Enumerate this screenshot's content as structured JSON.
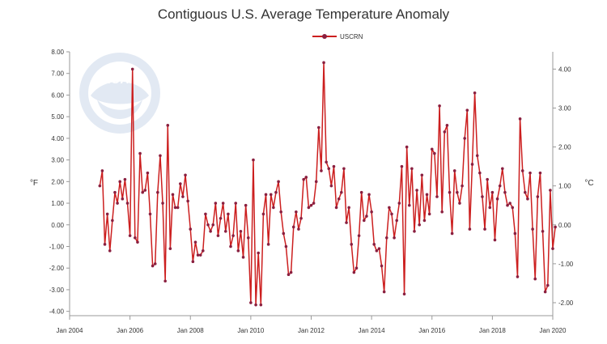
{
  "chart_data": {
    "type": "line",
    "title": "Contiguous U.S. Average Temperature Anomaly",
    "legend": "USCRN",
    "legend_position": "top-center",
    "xlabel": "",
    "ylabel": "°F",
    "y2label": "°C",
    "xlim": [
      2004.0,
      2020.0
    ],
    "ylim": [
      -4.2,
      8.0
    ],
    "y2lim": [
      -2.333,
      4.444
    ],
    "x_ticks": [
      2004,
      2006,
      2008,
      2010,
      2012,
      2014,
      2016,
      2018,
      2020
    ],
    "x_tick_labels": [
      "Jan 2004",
      "Jan 2006",
      "Jan 2008",
      "Jan 2010",
      "Jan 2012",
      "Jan 2014",
      "Jan 2016",
      "Jan 2018",
      "Jan 2020"
    ],
    "y_ticks": [
      -4,
      -3,
      -2,
      -1,
      0,
      1,
      2,
      3,
      4,
      5,
      6,
      7,
      8
    ],
    "y_tick_labels": [
      "-4.00",
      "-3.00",
      "-2.00",
      "-1.00",
      "0.00",
      "1.00",
      "2.00",
      "3.00",
      "4.00",
      "5.00",
      "6.00",
      "7.00",
      "8.00"
    ],
    "y2_ticks": [
      -2,
      -1,
      0,
      1,
      2,
      3,
      4
    ],
    "y2_tick_labels": [
      "-2.00",
      "-1.00",
      "0.00",
      "1.00",
      "2.00",
      "3.00",
      "4.00"
    ],
    "grid": false,
    "series": [
      {
        "name": "USCRN",
        "color": "#cc1f1f",
        "marker_color": "#8a1f3f",
        "start": 2005.0,
        "step_months": 1,
        "values": [
          1.8,
          2.5,
          -0.9,
          0.5,
          -1.2,
          0.2,
          1.5,
          1.0,
          2.0,
          1.2,
          2.1,
          1.0,
          -0.5,
          7.2,
          -0.6,
          -0.8,
          3.3,
          1.5,
          1.6,
          2.4,
          0.5,
          -1.9,
          -1.8,
          1.5,
          3.2,
          1.0,
          -2.6,
          4.6,
          -1.1,
          1.4,
          0.8,
          0.8,
          1.9,
          1.3,
          2.3,
          1.1,
          -0.2,
          -1.7,
          -0.8,
          -1.4,
          -1.4,
          -1.2,
          0.5,
          0.0,
          -0.3,
          0.0,
          1.0,
          -0.5,
          0.3,
          1.0,
          -0.3,
          0.5,
          -1.0,
          -0.5,
          1.0,
          -1.2,
          -0.3,
          -1.5,
          0.9,
          -0.6,
          -3.6,
          3.0,
          -3.7,
          -1.3,
          -3.7,
          0.5,
          1.4,
          -0.9,
          1.4,
          0.8,
          1.5,
          2.0,
          0.6,
          -0.4,
          -1.0,
          -2.3,
          -2.2,
          -0.1,
          0.6,
          -0.2,
          0.3,
          2.1,
          2.2,
          0.8,
          0.9,
          1.0,
          2.0,
          4.5,
          2.5,
          7.5,
          2.9,
          2.6,
          1.8,
          2.7,
          0.8,
          1.2,
          1.5,
          2.6,
          0.1,
          0.8,
          -0.9,
          -2.2,
          -2.0,
          -0.5,
          1.5,
          0.2,
          0.4,
          1.4,
          0.6,
          -0.9,
          -1.2,
          -1.1,
          -1.9,
          -3.1,
          -0.6,
          0.8,
          0.5,
          -0.6,
          0.2,
          1.0,
          2.7,
          -3.2,
          3.6,
          0.9,
          2.6,
          -0.3,
          1.6,
          0.0,
          2.3,
          0.2,
          1.4,
          0.5,
          3.5,
          3.3,
          1.3,
          5.5,
          0.6,
          4.3,
          4.6,
          1.5,
          -0.4,
          2.5,
          1.5,
          1.0,
          1.8,
          4.0,
          5.3,
          -0.2,
          2.8,
          6.1,
          3.2,
          2.4,
          1.3,
          -0.2,
          2.1,
          0.8,
          1.5,
          -0.7,
          1.2,
          1.8,
          2.6,
          1.5,
          0.9,
          1.0,
          0.8,
          -0.4,
          -2.4,
          4.9,
          2.5,
          1.5,
          1.2,
          2.4,
          -0.2,
          -2.5,
          1.3,
          2.4,
          -0.3,
          -3.1,
          -2.8,
          1.6,
          -1.1,
          -0.1
        ]
      }
    ]
  }
}
